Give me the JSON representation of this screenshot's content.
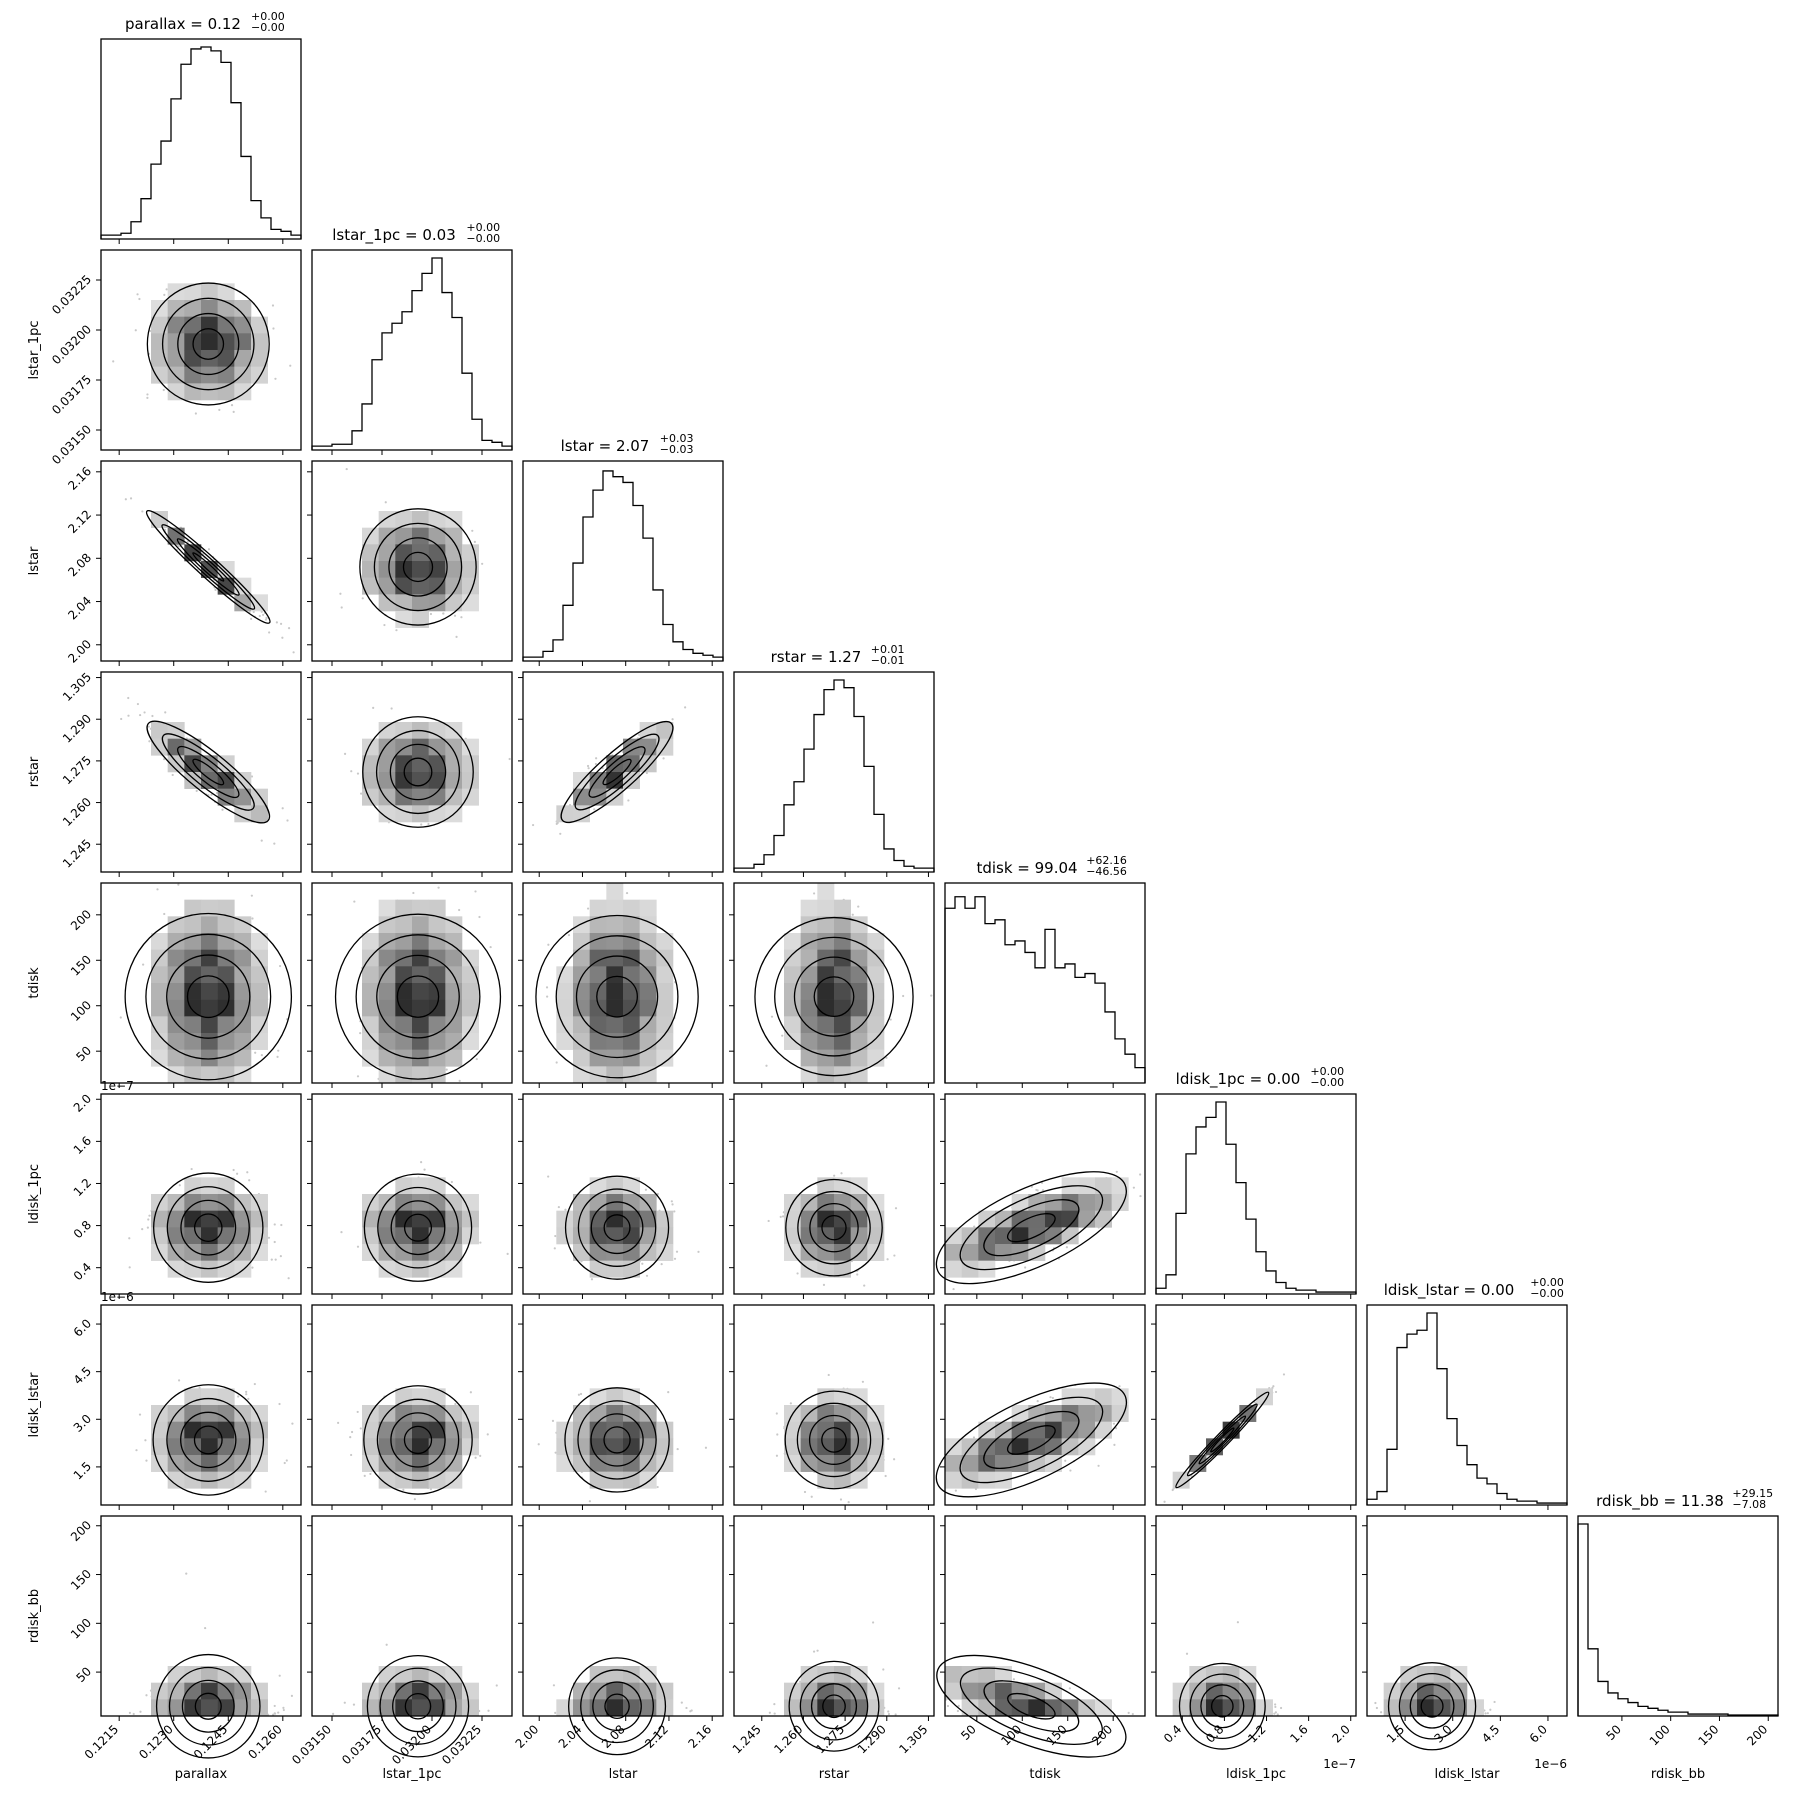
{
  "chart_data": {
    "type": "corner",
    "params": [
      "parallax",
      "lstar_1pc",
      "lstar",
      "rstar",
      "tdisk",
      "ldisk_1pc",
      "ldisk_lstar",
      "rdisk_bb"
    ],
    "titles": [
      {
        "name": "parallax",
        "value": "0.12",
        "plus": "+0.00",
        "minus": "−0.00"
      },
      {
        "name": "lstar_1pc",
        "value": "0.03",
        "plus": "+0.00",
        "minus": "−0.00"
      },
      {
        "name": "lstar",
        "value": "2.07",
        "plus": "+0.03",
        "minus": "−0.03"
      },
      {
        "name": "rstar",
        "value": "1.27",
        "plus": "+0.01",
        "minus": "−0.01"
      },
      {
        "name": "tdisk",
        "value": "99.04",
        "plus": "+62.16",
        "minus": "−46.56"
      },
      {
        "name": "ldisk_1pc",
        "value": "0.00",
        "plus": "+0.00",
        "minus": "−0.00"
      },
      {
        "name": "ldisk_lstar",
        "value": "0.00",
        "plus": "+0.00",
        "minus": "−0.00"
      },
      {
        "name": "rdisk_bb",
        "value": "11.38",
        "plus": "+29.15",
        "minus": "−7.08"
      }
    ],
    "axes": [
      {
        "name": "parallax",
        "range": [
          0.121,
          0.1265
        ],
        "ticks": [
          0.1215,
          0.123,
          0.1245,
          0.126
        ],
        "tick_labels": [
          "0.1215",
          "0.1230",
          "0.1245",
          "0.1260"
        ],
        "mean": 0.12395,
        "sd": 0.00085,
        "offset": ""
      },
      {
        "name": "lstar_1pc",
        "range": [
          0.0314,
          0.0324
        ],
        "ticks": [
          0.0315,
          0.03175,
          0.032,
          0.03225
        ],
        "tick_labels": [
          "0.03150",
          "0.03175",
          "0.03200",
          "0.03225"
        ],
        "mean": 0.03193,
        "sd": 0.00015,
        "offset": ""
      },
      {
        "name": "lstar",
        "range": [
          1.985,
          2.17
        ],
        "ticks": [
          2.0,
          2.04,
          2.08,
          2.12,
          2.16
        ],
        "tick_labels": [
          "2.00",
          "2.04",
          "2.08",
          "2.12",
          "2.16"
        ],
        "mean": 2.072,
        "sd": 0.026,
        "offset": ""
      },
      {
        "name": "rstar",
        "range": [
          1.235,
          1.307
        ],
        "ticks": [
          1.245,
          1.26,
          1.275,
          1.29,
          1.305
        ],
        "tick_labels": [
          "1.245",
          "1.260",
          "1.275",
          "1.290",
          "1.305"
        ],
        "mean": 1.271,
        "sd": 0.009,
        "offset": ""
      },
      {
        "name": "tdisk",
        "range": [
          15,
          235
        ],
        "ticks": [
          50,
          100,
          150,
          200
        ],
        "tick_labels": [
          "50",
          "100",
          "150",
          "200"
        ],
        "mean": 110,
        "sd": 55,
        "offset": ""
      },
      {
        "name": "ldisk_1pc",
        "range": [
          0.15,
          2.05
        ],
        "ticks": [
          0.4,
          0.8,
          1.2,
          1.6,
          2.0
        ],
        "tick_labels": [
          "0.4",
          "0.8",
          "1.2",
          "1.6",
          "2.0"
        ],
        "mean": 0.78,
        "sd": 0.22,
        "offset": "1e−7"
      },
      {
        "name": "ldisk_lstar",
        "range": [
          0.3,
          6.6
        ],
        "ticks": [
          1.5,
          3.0,
          4.5,
          6.0
        ],
        "tick_labels": [
          "1.5",
          "3.0",
          "4.5",
          "6.0"
        ],
        "mean": 2.35,
        "sd": 0.75,
        "offset": "1e−6"
      },
      {
        "name": "rdisk_bb",
        "range": [
          5,
          210
        ],
        "ticks": [
          50,
          100,
          150,
          200
        ],
        "tick_labels": [
          "50",
          "100",
          "150",
          "200"
        ],
        "mean": 15,
        "sd": 20,
        "offset": ""
      }
    ],
    "correlations": [
      {
        "pair": [
          "parallax",
          "lstar"
        ],
        "r": -0.97
      },
      {
        "pair": [
          "parallax",
          "rstar"
        ],
        "r": -0.88
      },
      {
        "pair": [
          "lstar",
          "rstar"
        ],
        "r": 0.88
      },
      {
        "pair": [
          "tdisk",
          "ldisk_1pc"
        ],
        "r": 0.75
      },
      {
        "pair": [
          "tdisk",
          "ldisk_lstar"
        ],
        "r": 0.75
      },
      {
        "pair": [
          "ldisk_1pc",
          "ldisk_lstar"
        ],
        "r": 0.99
      },
      {
        "pair": [
          "tdisk",
          "rdisk_bb"
        ],
        "r": -0.75
      }
    ],
    "histograms": {
      "parallax": [
        2,
        2,
        3,
        9,
        21,
        39,
        51,
        73,
        91,
        99,
        100,
        98,
        92,
        71,
        43,
        20,
        11,
        5,
        4,
        2
      ],
      "lstar_1pc": [
        2,
        2,
        3,
        3,
        10,
        24,
        47,
        61,
        66,
        72,
        83,
        92,
        100,
        82,
        69,
        40,
        16,
        5,
        4,
        2
      ],
      "lstar": [
        2,
        2,
        5,
        11,
        29,
        51,
        75,
        89,
        99,
        96,
        93,
        81,
        64,
        37,
        19,
        10,
        6,
        4,
        3,
        2
      ],
      "rstar": [
        2,
        2,
        4,
        9,
        19,
        35,
        47,
        64,
        82,
        95,
        100,
        96,
        81,
        55,
        30,
        12,
        6,
        3,
        2,
        2
      ],
      "tdisk": [
        91,
        97,
        91,
        97,
        83,
        85,
        72,
        74,
        68,
        60,
        80,
        60,
        62,
        55,
        57,
        52,
        37,
        23,
        15,
        8
      ],
      "ldisk_1pc": [
        3,
        10,
        42,
        73,
        87,
        92,
        100,
        78,
        58,
        39,
        22,
        12,
        6,
        3,
        2,
        2,
        1,
        1,
        1,
        1
      ],
      "ldisk_lstar": [
        3,
        7,
        29,
        82,
        89,
        91,
        100,
        71,
        45,
        31,
        21,
        14,
        11,
        6,
        3,
        2,
        2,
        1,
        1,
        1
      ],
      "rdisk_bb": [
        100,
        35,
        18,
        12,
        9,
        7,
        5,
        4,
        3,
        2,
        2,
        1,
        1,
        1,
        1,
        0.5,
        0.5,
        0.5,
        0.5,
        0.5
      ]
    }
  }
}
